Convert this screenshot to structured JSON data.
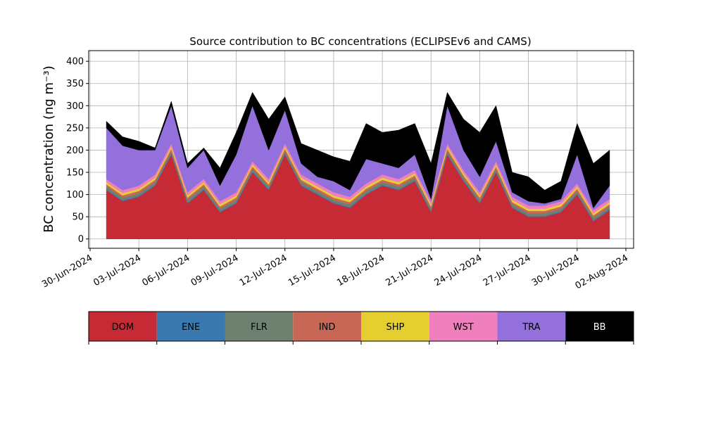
{
  "chart_data": {
    "type": "stacked_area",
    "title": "Source contribution to BC concentrations (ECLIPSEv6 and CAMS)",
    "y_label": "BC concentration (ng m⁻³)",
    "x": [
      "2024-07-01",
      "2024-07-02",
      "2024-07-03",
      "2024-07-04",
      "2024-07-05",
      "2024-07-06",
      "2024-07-07",
      "2024-07-08",
      "2024-07-09",
      "2024-07-10",
      "2024-07-11",
      "2024-07-12",
      "2024-07-13",
      "2024-07-14",
      "2024-07-15",
      "2024-07-16",
      "2024-07-17",
      "2024-07-18",
      "2024-07-19",
      "2024-07-20",
      "2024-07-21",
      "2024-07-22",
      "2024-07-23",
      "2024-07-24",
      "2024-07-25",
      "2024-07-26",
      "2024-07-27",
      "2024-07-28",
      "2024-07-29",
      "2024-07-30",
      "2024-07-31",
      "2024-08-01"
    ],
    "series": [
      {
        "name": "DOM",
        "color": "#c52a35",
        "values": [
          110,
          85,
          95,
          120,
          190,
          80,
          110,
          60,
          80,
          150,
          110,
          190,
          120,
          100,
          80,
          70,
          100,
          120,
          110,
          130,
          60,
          190,
          130,
          80,
          150,
          70,
          50,
          50,
          60,
          100,
          40,
          65
        ]
      },
      {
        "name": "ENE",
        "color": "#3a78b0",
        "values": [
          2,
          2,
          2,
          2,
          2,
          2,
          2,
          2,
          2,
          2,
          2,
          2,
          2,
          2,
          2,
          2,
          2,
          2,
          2,
          2,
          2,
          2,
          2,
          2,
          2,
          2,
          2,
          2,
          2,
          2,
          2,
          2
        ]
      },
      {
        "name": "FLR",
        "color": "#6e8070",
        "values": [
          6,
          6,
          6,
          6,
          6,
          6,
          6,
          6,
          6,
          6,
          6,
          6,
          6,
          6,
          6,
          6,
          6,
          6,
          6,
          6,
          6,
          6,
          6,
          6,
          6,
          6,
          6,
          6,
          6,
          6,
          6,
          6
        ]
      },
      {
        "name": "IND",
        "color": "#c96757",
        "values": [
          5,
          5,
          5,
          5,
          5,
          5,
          5,
          5,
          5,
          5,
          5,
          5,
          5,
          5,
          5,
          5,
          5,
          5,
          5,
          5,
          5,
          5,
          5,
          5,
          5,
          5,
          5,
          5,
          5,
          5,
          5,
          5
        ]
      },
      {
        "name": "SHP",
        "color": "#e5cf30",
        "values": [
          5,
          5,
          5,
          5,
          5,
          5,
          5,
          5,
          5,
          5,
          5,
          5,
          5,
          5,
          5,
          5,
          5,
          5,
          5,
          5,
          5,
          5,
          5,
          5,
          5,
          5,
          5,
          5,
          5,
          5,
          5,
          5
        ]
      },
      {
        "name": "WST",
        "color": "#f07fbd",
        "values": [
          7,
          7,
          7,
          7,
          7,
          7,
          7,
          7,
          7,
          7,
          7,
          7,
          7,
          7,
          7,
          7,
          7,
          7,
          7,
          7,
          7,
          7,
          7,
          7,
          7,
          7,
          7,
          7,
          7,
          7,
          7,
          7
        ]
      },
      {
        "name": "TRA",
        "color": "#9370db",
        "values": [
          115,
          100,
          80,
          55,
          85,
          55,
          65,
          35,
          85,
          125,
          65,
          75,
          25,
          15,
          25,
          15,
          55,
          25,
          25,
          35,
          5,
          85,
          45,
          35,
          45,
          10,
          10,
          5,
          5,
          65,
          5,
          30
        ]
      },
      {
        "name": "BB",
        "color": "#000000",
        "values": [
          15,
          20,
          20,
          5,
          10,
          10,
          5,
          40,
          50,
          30,
          70,
          30,
          45,
          60,
          55,
          65,
          80,
          70,
          85,
          70,
          80,
          30,
          70,
          100,
          80,
          45,
          55,
          30,
          40,
          70,
          100,
          80
        ]
      }
    ],
    "xlim": [
      "2024-06-30",
      "2024-08-02"
    ],
    "xticks": [
      {
        "value": "2024-06-30",
        "label": "30-Jun-2024"
      },
      {
        "value": "2024-07-03",
        "label": "03-Jul-2024"
      },
      {
        "value": "2024-07-06",
        "label": "06-Jul-2024"
      },
      {
        "value": "2024-07-09",
        "label": "09-Jul-2024"
      },
      {
        "value": "2024-07-12",
        "label": "12-Jul-2024"
      },
      {
        "value": "2024-07-15",
        "label": "15-Jul-2024"
      },
      {
        "value": "2024-07-18",
        "label": "18-Jul-2024"
      },
      {
        "value": "2024-07-21",
        "label": "21-Jul-2024"
      },
      {
        "value": "2024-07-24",
        "label": "24-Jul-2024"
      },
      {
        "value": "2024-07-27",
        "label": "27-Jul-2024"
      },
      {
        "value": "2024-07-30",
        "label": "30-Jul-2024"
      },
      {
        "value": "2024-08-02",
        "label": "02-Aug-2024"
      }
    ],
    "ylim": [
      -21,
      424
    ],
    "yticks": [
      0,
      50,
      100,
      150,
      200,
      250,
      300,
      350,
      400
    ],
    "grid": true
  }
}
